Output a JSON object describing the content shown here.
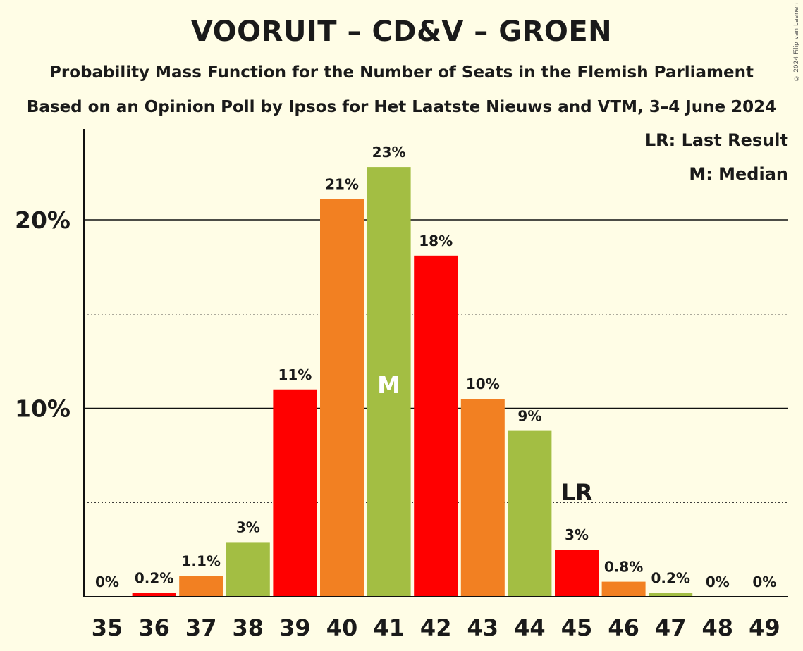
{
  "title": "VOORUIT – CD&V – GROEN",
  "subtitle": "Probability Mass Function for the Number of Seats in the Flemish Parliament",
  "subtitle2": "Based on an Opinion Poll by Ipsos for Het Laatste Nieuws and VTM, 3–4 June 2024",
  "copyright": "© 2024 Filip van Laenen",
  "legend": {
    "last_result": "LR: Last Result",
    "median": "M: Median"
  },
  "colors": {
    "background": "#fffde6",
    "red": "#ff0000",
    "orange": "#f28022",
    "green": "#a3be43"
  },
  "chart_data": {
    "type": "bar",
    "categories": [
      "35",
      "36",
      "37",
      "38",
      "39",
      "40",
      "41",
      "42",
      "43",
      "44",
      "45",
      "46",
      "47",
      "48",
      "49"
    ],
    "values": [
      0,
      0.2,
      1.1,
      2.9,
      11.0,
      21.1,
      22.8,
      18.1,
      10.5,
      8.8,
      2.5,
      0.8,
      0.2,
      0,
      0
    ],
    "labels": [
      "0%",
      "0.2%",
      "1.1%",
      "3%",
      "11%",
      "21%",
      "23%",
      "18%",
      "10%",
      "9%",
      "3%",
      "0.8%",
      "0.2%",
      "0%",
      "0%"
    ],
    "bar_colors": [
      "red",
      "red",
      "orange",
      "green",
      "red",
      "orange",
      "green",
      "red",
      "orange",
      "green",
      "red",
      "orange",
      "green",
      "red",
      "orange"
    ],
    "y_ticks": [
      "10%",
      "20%"
    ],
    "ylim": [
      0,
      25
    ],
    "median_seat": "41",
    "median_marker": "M",
    "last_result_seat": "45",
    "last_result_marker": "LR",
    "title": "VOORUIT – CD&V – GROEN",
    "xlabel": "",
    "ylabel": ""
  }
}
